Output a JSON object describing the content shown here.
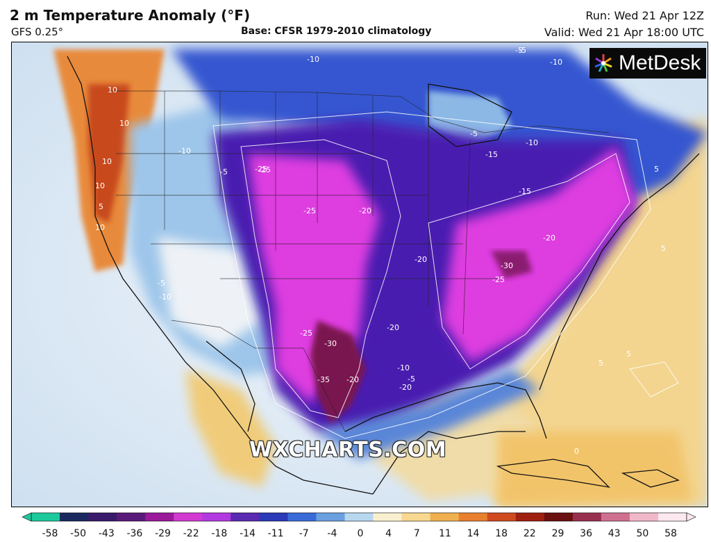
{
  "header": {
    "title": "2 m Temperature Anomaly (°F)",
    "model": "GFS 0.25°",
    "base": "Base: CFSR 1979-2010 climatology",
    "run": "Run: Wed 21 Apr 12Z",
    "valid": "Valid: Wed 21 Apr 18:00 UTC"
  },
  "branding": {
    "logo_text": "MetDesk",
    "watermark": "WXCHARTS.COM"
  },
  "map": {
    "contour_labels": [
      "10",
      "10",
      "10",
      "5",
      "10",
      "10",
      "-5",
      "-10",
      "-10",
      "-5",
      "-10",
      "-10",
      "-15",
      "-10",
      "-15",
      "-5",
      "-5",
      "-25",
      "-25",
      "-20",
      "-20",
      "-25",
      "-25",
      "-30",
      "-25",
      "-20",
      "-20",
      "-30",
      "-35",
      "-20",
      "-20",
      "-10",
      "-5",
      "-5",
      "5",
      "5",
      "5",
      "5",
      "0"
    ],
    "colors": {
      "extreme_cold": "#7a1a5a",
      "deep_cold": "#e24ce0",
      "cold": "#5a1aa8",
      "cool": "#2a3cc8",
      "mild_cool": "#6aa8e0",
      "near_zero": "#f2f2f2",
      "warm": "#f0d27a",
      "hot": "#e07a2a",
      "very_hot": "#b83010"
    }
  },
  "colorbar": {
    "ticks": [
      "-58",
      "-50",
      "-43",
      "-36",
      "-29",
      "-22",
      "-18",
      "-14",
      "-11",
      "-7",
      "-4",
      "0",
      "4",
      "7",
      "11",
      "14",
      "18",
      "22",
      "29",
      "36",
      "43",
      "50",
      "58"
    ],
    "colors": [
      "#1cc99a",
      "#1a2a5e",
      "#3a1a6a",
      "#5a1a7a",
      "#9a1a9a",
      "#d23ad2",
      "#b23ae0",
      "#5a2ab0",
      "#2a3ab8",
      "#3a6ad8",
      "#6aa0e0",
      "#b8d8f0",
      "#f8f0d0",
      "#f8d890",
      "#f0b050",
      "#e88030",
      "#d04a20",
      "#a02010",
      "#6a1010",
      "#9a3050",
      "#d07090",
      "#f0b8c8",
      "#fce8ee"
    ]
  }
}
